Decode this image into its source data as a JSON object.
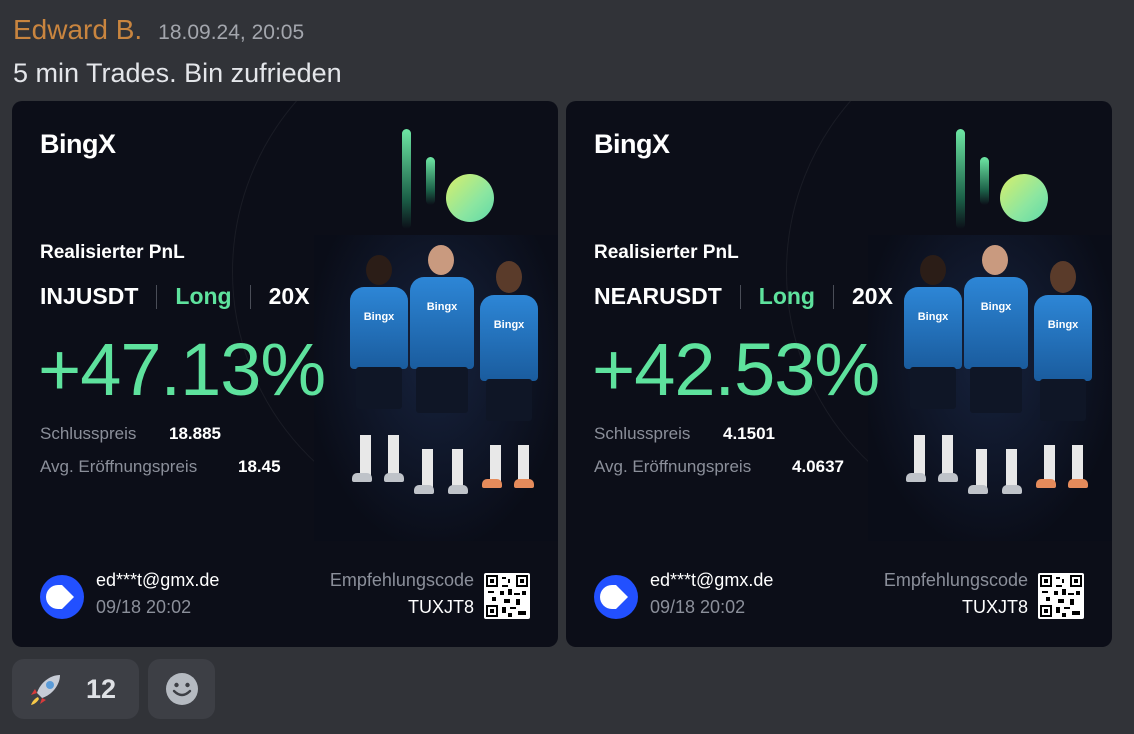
{
  "message": {
    "author": "Edward B.",
    "timestamp": "18.09.24, 20:05",
    "text": "5 min Trades. Bin zufrieden"
  },
  "cards": [
    {
      "brand": "BingX",
      "pnl_label": "Realisierter PnL",
      "pair": "INJUSDT",
      "side": "Long",
      "leverage": "20X",
      "pnl_percent": "+47.13%",
      "close_label": "Schlusspreis",
      "close_price": "18.885",
      "open_label": "Avg. Eröffnungspreis",
      "open_price": "18.45",
      "user_email": "ed***t@gmx.de",
      "date": "09/18 20:02",
      "referral_label": "Empfehlungscode",
      "referral_code": "TUXJT8",
      "shirt_text": "Bingx"
    },
    {
      "brand": "BingX",
      "pnl_label": "Realisierter PnL",
      "pair": "NEARUSDT",
      "side": "Long",
      "leverage": "20X",
      "pnl_percent": "+42.53%",
      "close_label": "Schlusspreis",
      "close_price": "4.1501",
      "open_label": "Avg. Eröffnungspreis",
      "open_price": "4.0637",
      "user_email": "ed***t@gmx.de",
      "date": "09/18 20:02",
      "referral_label": "Empfehlungscode",
      "referral_code": "TUXJT8",
      "shirt_text": "Bingx"
    }
  ],
  "reactions": [
    {
      "emoji": "rocket-icon",
      "count": "12"
    }
  ],
  "colors": {
    "background": "#313338",
    "author": "#c9853f",
    "profit_green": "#5ee29d",
    "card_bg": "#0c0e18"
  }
}
